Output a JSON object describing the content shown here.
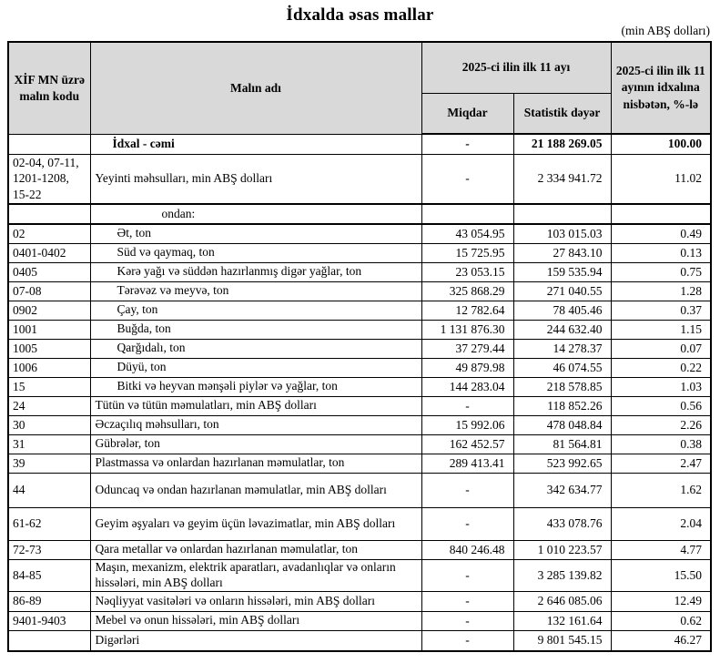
{
  "title": "İdxalda əsas mallar",
  "unit_note": "(min ABŞ dolları)",
  "table": {
    "header": {
      "col_code": "XİF MN üzrə malın kodu",
      "col_name": "Malın adı",
      "group_period": "2025-ci ilin ilk 11 ayı",
      "col_quantity": "Miqdar",
      "col_value": "Statistik dəyər",
      "col_share": "2025-ci ilin ilk 11 ayının idxalına nisbətən, %-lə"
    },
    "rows": [
      {
        "code": "",
        "name": "İdxal - cəmi",
        "quantity": "-",
        "value": "21 188 269.05",
        "share": "100.00"
      },
      {
        "code": "02-04, 07-11, 1201-1208, 15-22",
        "name": "Yeyinti məhsulları, min ABŞ dolları",
        "quantity": "-",
        "value": "2 334 941.72",
        "share": "11.02"
      },
      {
        "code": "",
        "name": "ondan:",
        "quantity": "",
        "value": "",
        "share": ""
      },
      {
        "code": "02",
        "name": "Ət, ton",
        "quantity": "43 054.95",
        "value": "103 015.03",
        "share": "0.49"
      },
      {
        "code": "0401-0402",
        "name": "Süd və qaymaq, ton",
        "quantity": "15 725.95",
        "value": "27 843.10",
        "share": "0.13"
      },
      {
        "code": "0405",
        "name": "Kərə yağı və süddən hazırlanmış digər yağlar, ton",
        "quantity": "23 053.15",
        "value": "159 535.94",
        "share": "0.75"
      },
      {
        "code": "07-08",
        "name": "Tərəvəz və meyvə, ton",
        "quantity": "325 868.29",
        "value": "271 040.55",
        "share": "1.28"
      },
      {
        "code": "0902",
        "name": "Çay, ton",
        "quantity": "12 782.64",
        "value": "78 405.46",
        "share": "0.37"
      },
      {
        "code": "1001",
        "name": "Buğda, ton",
        "quantity": "1 131 876.30",
        "value": "244 632.40",
        "share": "1.15"
      },
      {
        "code": "1005",
        "name": "Qarğıdalı, ton",
        "quantity": "37 279.44",
        "value": "14 278.37",
        "share": "0.07"
      },
      {
        "code": "1006",
        "name": "Düyü, ton",
        "quantity": "49 879.98",
        "value": "46 074.55",
        "share": "0.22"
      },
      {
        "code": "15",
        "name": "Bitki və heyvan mənşəli piylər və yağlar, ton",
        "quantity": "144 283.04",
        "value": "218 578.85",
        "share": "1.03"
      },
      {
        "code": "24",
        "name": "Tütün və tütün məmulatları, min ABŞ dolları",
        "quantity": "-",
        "value": "118 852.26",
        "share": "0.56"
      },
      {
        "code": "30",
        "name": "Əczaçılıq məhsulları, ton",
        "quantity": "15 992.06",
        "value": "478 048.84",
        "share": "2.26"
      },
      {
        "code": "31",
        "name": "Gübrələr, ton",
        "quantity": "162 452.57",
        "value": "81 564.81",
        "share": "0.38"
      },
      {
        "code": "39",
        "name": "Plastmassa və onlardan hazırlanan məmulatlar, ton",
        "quantity": "289 413.41",
        "value": "523 992.65",
        "share": "2.47"
      },
      {
        "code": "44",
        "name": "Oduncaq və ondan hazırlanan məmulatlar, min ABŞ dolları",
        "quantity": "-",
        "value": "342 634.77",
        "share": "1.62"
      },
      {
        "code": "61-62",
        "name": "Geyim əşyaları və geyim üçün ləvazimatlar, min ABŞ dolları",
        "quantity": "-",
        "value": "433 078.76",
        "share": "2.04"
      },
      {
        "code": "72-73",
        "name": "Qara metallar və onlardan hazırlanan məmulatlar, ton",
        "quantity": "840 246.48",
        "value": "1 010 223.57",
        "share": "4.77"
      },
      {
        "code": "84-85",
        "name": "Maşın, mexanizm, elektrik aparatları, avadanlıqlar və onların hissələri, min ABŞ dolları",
        "quantity": "-",
        "value": "3 285 139.82",
        "share": "15.50"
      },
      {
        "code": "86-89",
        "name": "Nəqliyyat vasitələri və onların hissələri, min ABŞ dolları",
        "quantity": "-",
        "value": "2 646 085.06",
        "share": "12.49"
      },
      {
        "code": "9401-9403",
        "name": "Mebel və onun hissələri, min ABŞ dolları",
        "quantity": "-",
        "value": "132 161.64",
        "share": "0.62"
      },
      {
        "code": "",
        "name": "Digərləri",
        "quantity": "-",
        "value": "9 801 545.15",
        "share": "46.27"
      }
    ]
  }
}
